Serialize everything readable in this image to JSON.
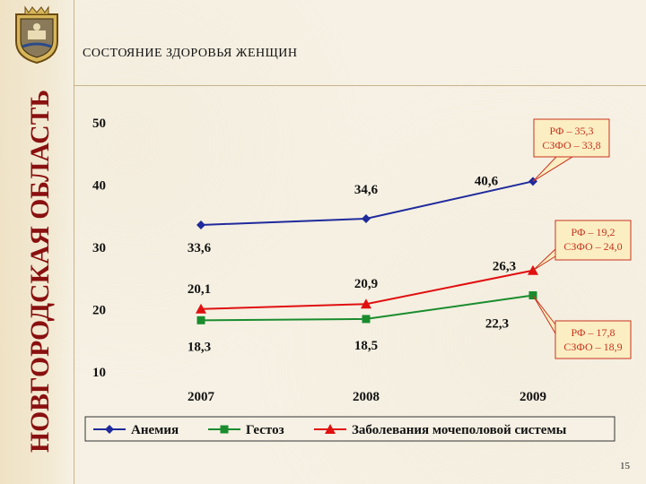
{
  "page": {
    "title": "СОСТОЯНИЕ ЗДОРОВЬЯ ЖЕНЩИН",
    "side_title": "НОВГОРОДСКАЯ ОБЛАСТЬ",
    "page_number": "15"
  },
  "colors": {
    "anemia": "#1f2a9c",
    "gestoz": "#1a8c2e",
    "urogenital": "#e01010",
    "side_title": "#8a1010"
  },
  "chart_data": {
    "type": "line",
    "categories": [
      "2007",
      "2008",
      "2009"
    ],
    "ylim": [
      10,
      50
    ],
    "yticks": [
      "10",
      "20",
      "30",
      "40",
      "50"
    ],
    "grid": false,
    "legend_position": "bottom",
    "series": [
      {
        "name": "Анемия",
        "values": [
          33.6,
          34.6,
          40.6
        ],
        "labels": [
          "33,6",
          "34,6",
          "40,6"
        ],
        "marker": "diamond"
      },
      {
        "name": "Гестоз",
        "values": [
          18.3,
          18.5,
          22.3
        ],
        "labels": [
          "18,3",
          "18,5",
          "22,3"
        ],
        "marker": "square"
      },
      {
        "name": "Заболевания мочеполовой системы",
        "values": [
          20.1,
          20.9,
          26.3
        ],
        "labels": [
          "20,1",
          "20,9",
          "26,3"
        ],
        "marker": "triangle"
      }
    ],
    "callouts": [
      {
        "series": 0,
        "lines": [
          "РФ – 35,3",
          "СЗФО – 33,8"
        ]
      },
      {
        "series": 2,
        "lines": [
          "РФ – 19,2",
          "СЗФО – 24,0"
        ]
      },
      {
        "series": 1,
        "lines": [
          "РФ – 17,8",
          "СЗФО – 18,9"
        ]
      }
    ]
  }
}
